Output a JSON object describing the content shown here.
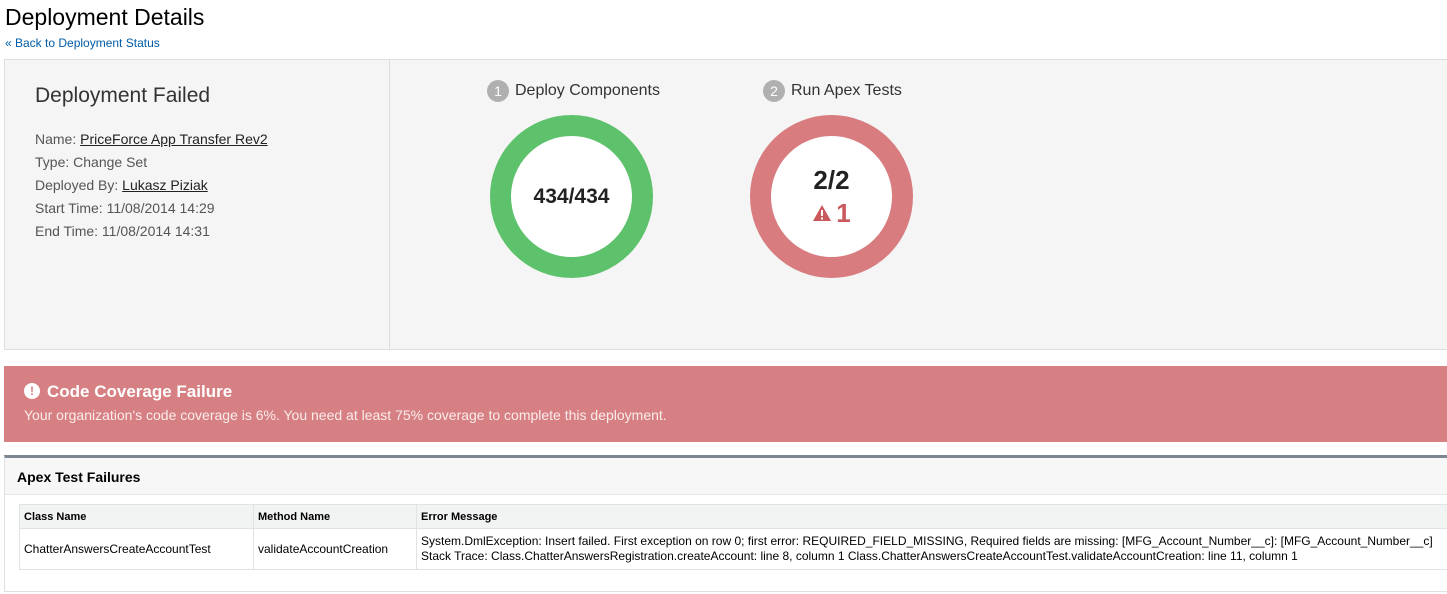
{
  "header": {
    "title": "Deployment Details",
    "back_link": "« Back to Deployment Status"
  },
  "summary": {
    "status": "Deployment Failed",
    "name_label": "Name:",
    "name_value": "PriceForce App Transfer Rev2",
    "type_label": "Type:",
    "type_value": "Change Set",
    "deployed_by_label": "Deployed By:",
    "deployed_by_value": "Lukasz Piziak",
    "start_label": "Start Time:",
    "start_value": "11/08/2014 14:29",
    "end_label": "End Time:",
    "end_value": "11/08/2014 14:31"
  },
  "steps": [
    {
      "number": "1",
      "label": "Deploy Components",
      "value": "434/434",
      "color": "#5dc26b"
    },
    {
      "number": "2",
      "label": "Run Apex Tests",
      "value": "2/2",
      "failures": "1",
      "color": "#d87c80"
    }
  ],
  "error": {
    "title": "Code Coverage Failure",
    "message": "Your organization's code coverage is 6%. You need at least 75% coverage to complete this deployment.",
    "color": "#d68083"
  },
  "failures": {
    "title": "Apex Test Failures",
    "columns": [
      "Class Name",
      "Method Name",
      "Error Message"
    ],
    "rows": [
      {
        "class_name": "ChatterAnswersCreateAccountTest",
        "method_name": "validateAccountCreation",
        "error_line1": "System.DmlException: Insert failed. First exception on row 0; first error: REQUIRED_FIELD_MISSING, Required fields are missing: [MFG_Account_Number__c]: [MFG_Account_Number__c]",
        "error_line2": "Stack Trace: Class.ChatterAnswersRegistration.createAccount: line 8, column 1 Class.ChatterAnswersCreateAccountTest.validateAccountCreation: line 11, column 1"
      }
    ]
  }
}
